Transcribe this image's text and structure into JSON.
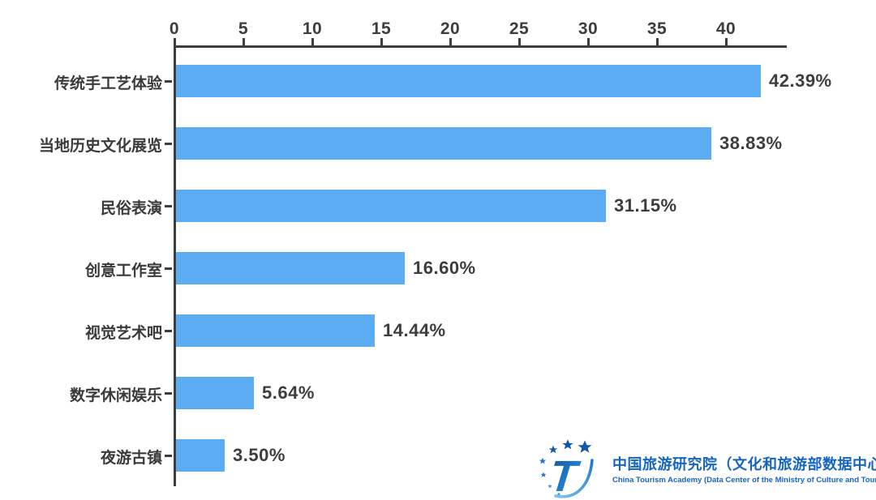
{
  "chart_data": {
    "type": "bar",
    "orientation": "horizontal",
    "title": "",
    "xlabel": "",
    "ylabel": "",
    "categories": [
      "传统手工艺体验",
      "当地历史文化展览",
      "民俗表演",
      "创意工作室",
      "视觉艺术吧",
      "数字休闲娱乐",
      "夜游古镇"
    ],
    "values": [
      42.39,
      38.83,
      31.15,
      16.6,
      14.44,
      5.64,
      3.5
    ],
    "value_labels": [
      "42.39%",
      "38.83%",
      "31.15%",
      "16.60%",
      "14.44%",
      "5.64%",
      "3.50%"
    ],
    "x_ticks": [
      0,
      5,
      10,
      15,
      20,
      25,
      30,
      35,
      40
    ],
    "xlim": [
      0,
      44.4
    ],
    "x_axis_position": "top",
    "grid": false,
    "legend": null,
    "bar_color": "#5BACF2",
    "axis_color": "#3d3d3d",
    "label_color": "#3a3a3a"
  },
  "logo": {
    "title_zh": "中国旅游研究院（文化和旅游部数据中心）",
    "title_en": "China Tourism Academy (Data Center of the Ministry of Culture and Tourism)",
    "brand_color": "#1565c0"
  }
}
